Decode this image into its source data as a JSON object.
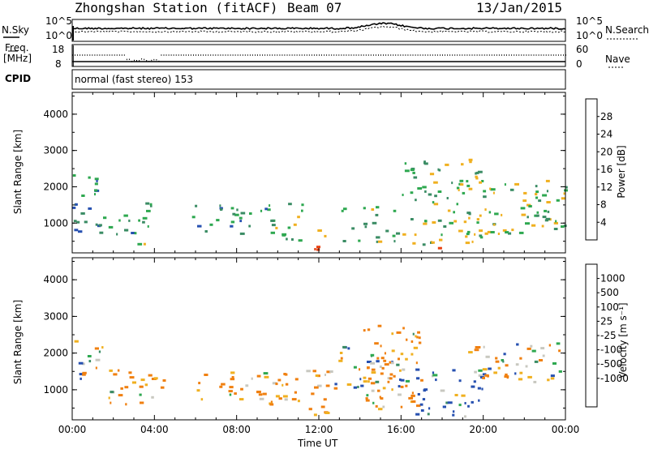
{
  "header": {
    "station": "Zhongshan Station (fitACF)",
    "beam": "Beam 07",
    "date": "13/Jan/2015"
  },
  "top_panels": {
    "nsky_label": "N.Sky",
    "nsky_ticks": [
      "10^5",
      "10^0"
    ],
    "nsearch_label": "N.Search",
    "nsearch_ticks": [
      "10^5",
      "10^0"
    ],
    "freq_label": "Freq.",
    "freq_unit": "[MHz]",
    "freq_ticks": [
      "18",
      "8"
    ],
    "nave_label": "Nave",
    "nave_ticks": [
      "60",
      "0"
    ],
    "cpid_label": "CPID",
    "cpid_text": "normal (fast stereo) 153"
  },
  "chart_data": [
    {
      "type": "heatmap",
      "panel": "power",
      "ylabel": "Slant Range [km]",
      "yticks": [
        "1000",
        "2000",
        "3000",
        "4000"
      ],
      "ylim": [
        180,
        4600
      ],
      "colorbar_label": "Power [dB]",
      "colorbar_ticks": [
        "4",
        "8",
        "12",
        "16",
        "20",
        "24",
        "28"
      ],
      "colorbar_range": [
        0,
        32
      ],
      "colors": [
        "#1a1aff",
        "#2650b0",
        "#3a8c64",
        "#2ea850",
        "#f0b020",
        "#f08010",
        "#e84010",
        "#e80000"
      ],
      "regions": [
        {
          "t": [
            0.0,
            1.2
          ],
          "r": [
            600,
            2400
          ],
          "level": 10
        },
        {
          "t": [
            1.2,
            3.0
          ],
          "r": [
            700,
            1500
          ],
          "level": 12
        },
        {
          "t": [
            3.0,
            4.0
          ],
          "r": [
            400,
            1600
          ],
          "level": 14
        },
        {
          "t": [
            5.8,
            9.5
          ],
          "r": [
            700,
            1600
          ],
          "level": 11
        },
        {
          "t": [
            9.5,
            11.2
          ],
          "r": [
            500,
            1600
          ],
          "level": 14
        },
        {
          "t": [
            11.2,
            12.5
          ],
          "r": [
            200,
            900
          ],
          "level": 22
        },
        {
          "t": [
            13.0,
            15.8
          ],
          "r": [
            500,
            1500
          ],
          "level": 13
        },
        {
          "t": [
            16.0,
            20.0
          ],
          "r": [
            400,
            2800
          ],
          "level": 15
        },
        {
          "t": [
            17.5,
            18.5
          ],
          "r": [
            200,
            500
          ],
          "level": 26
        },
        {
          "t": [
            20.0,
            24.0
          ],
          "r": [
            600,
            2200
          ],
          "level": 14
        }
      ]
    },
    {
      "type": "heatmap",
      "panel": "velocity",
      "ylabel": "Slant Range [km]",
      "yticks": [
        "1000",
        "2000",
        "3000",
        "4000"
      ],
      "ylim": [
        180,
        4600
      ],
      "xlabel": "Time UT",
      "xticks": [
        "00:00",
        "04:00",
        "08:00",
        "12:00",
        "16:00",
        "20:00",
        "00:00"
      ],
      "xlim": [
        0,
        24
      ],
      "colorbar_label": "Velocity [m s⁻¹]",
      "colorbar_ticks": [
        "1000",
        "500",
        "100",
        "25",
        "-25",
        "-100",
        "-500",
        "-1000"
      ],
      "colors": [
        "#1a1aff",
        "#2650b0",
        "#3a8c64",
        "#2ea850",
        "#60c840",
        "#c8c8c0",
        "#f0b020",
        "#f08010",
        "#e84010",
        "#e80000"
      ],
      "regions": [
        {
          "t": [
            0.0,
            1.5
          ],
          "r": [
            1200,
            2400
          ],
          "vel": 0
        },
        {
          "t": [
            1.5,
            4.5
          ],
          "r": [
            500,
            1600
          ],
          "vel": -150
        },
        {
          "t": [
            5.8,
            9.5
          ],
          "r": [
            700,
            1500
          ],
          "vel": -150
        },
        {
          "t": [
            9.5,
            12.5
          ],
          "r": [
            300,
            1600
          ],
          "vel": -200
        },
        {
          "t": [
            12.5,
            16.0
          ],
          "r": [
            1000,
            2200
          ],
          "vel": 0
        },
        {
          "t": [
            14.0,
            17.0
          ],
          "r": [
            500,
            2800
          ],
          "vel": -150
        },
        {
          "t": [
            16.5,
            20.0
          ],
          "r": [
            300,
            1600
          ],
          "vel": 150
        },
        {
          "t": [
            19.0,
            24.0
          ],
          "r": [
            1200,
            2300
          ],
          "vel": 0
        }
      ]
    }
  ]
}
